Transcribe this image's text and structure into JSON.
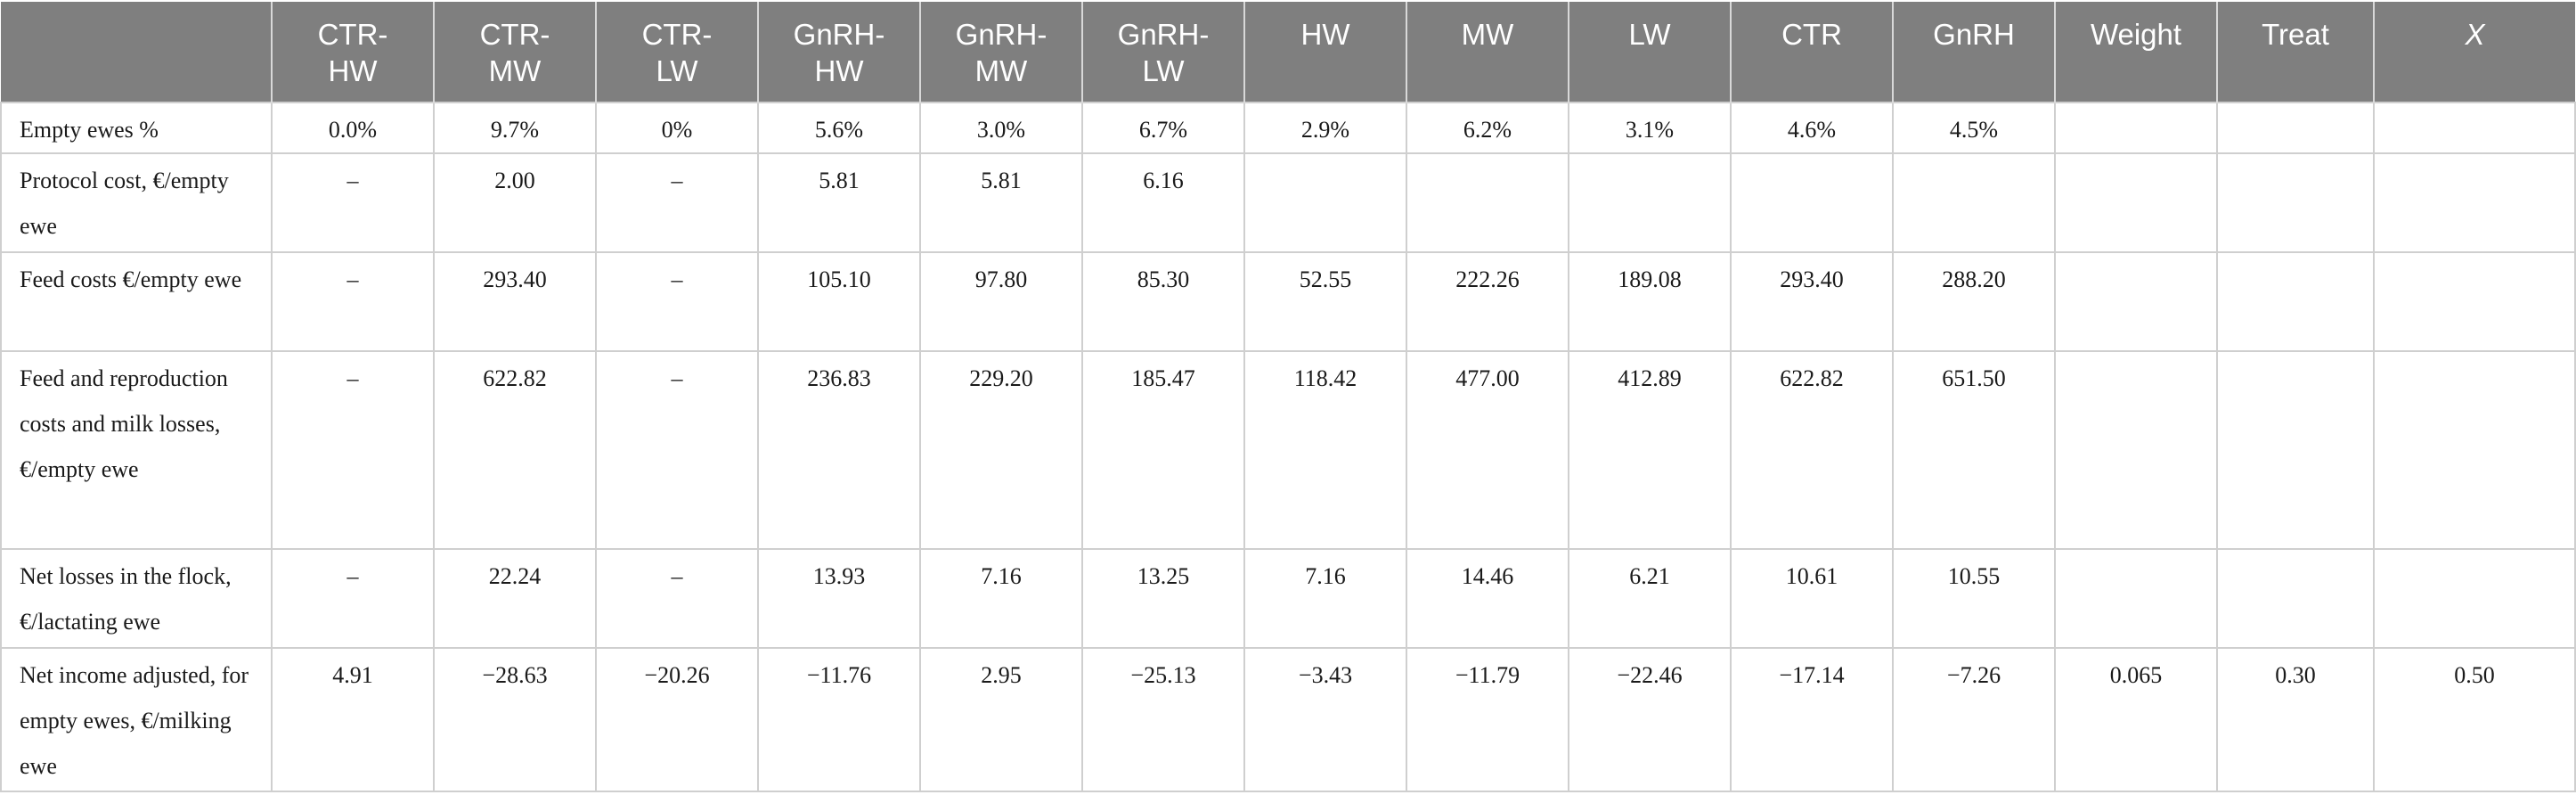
{
  "table": {
    "headers": [
      "",
      "CTR-HW",
      "CTR-MW",
      "CTR-LW",
      "GnRH-HW",
      "GnRH-MW",
      "GnRH-LW",
      "HW",
      "MW",
      "LW",
      "CTR",
      "GnRH",
      "Weight",
      "Treat",
      "X"
    ],
    "header_display": [
      "",
      "CTR-\nHW",
      "CTR-\nMW",
      "CTR-\nLW",
      "GnRH-\nHW",
      "GnRH-\nMW",
      "GnRH-\nLW",
      "HW",
      "MW",
      "LW",
      "CTR",
      "GnRH",
      "Weight",
      "Treat",
      "X"
    ],
    "rows": [
      {
        "label": "Empty ewes %",
        "cells": [
          "0.0%",
          "9.7%",
          "0%",
          "5.6%",
          "3.0%",
          "6.7%",
          "2.9%",
          "6.2%",
          "3.1%",
          "4.6%",
          "4.5%",
          "",
          "",
          ""
        ]
      },
      {
        "label": "Protocol cost, €/empty ewe",
        "cells": [
          "–",
          "2.00",
          "–",
          "5.81",
          "5.81",
          "6.16",
          "",
          "",
          "",
          "",
          "",
          "",
          "",
          ""
        ]
      },
      {
        "label": "Feed costs €/empty ewe",
        "cells": [
          "–",
          "293.40",
          "–",
          "105.10",
          "97.80",
          "85.30",
          "52.55",
          "222.26",
          "189.08",
          "293.40",
          "288.20",
          "",
          "",
          ""
        ]
      },
      {
        "label": "Feed and reproduction costs and milk losses, €/empty ewe",
        "cells": [
          "–",
          "622.82",
          "–",
          "236.83",
          "229.20",
          "185.47",
          "118.42",
          "477.00",
          "412.89",
          "622.82",
          "651.50",
          "",
          "",
          ""
        ]
      },
      {
        "label": "Net losses in the flock, €/lactating ewe",
        "cells": [
          "–",
          "22.24",
          "–",
          "13.93",
          "7.16",
          "13.25",
          "7.16",
          "14.46",
          "6.21",
          "10.61",
          "10.55",
          "",
          "",
          ""
        ]
      },
      {
        "label": "Net income adjusted, for empty ewes, €/milking ewe",
        "cells": [
          "4.91",
          "−28.63",
          "−20.26",
          "−11.76",
          "2.95",
          "−25.13",
          "−3.43",
          "−11.79",
          "−22.46",
          "−17.14",
          "−7.26",
          "0.065",
          "0.30",
          "0.50"
        ]
      }
    ]
  },
  "colors": {
    "header_background": "#7f7f7f",
    "header_text": "#ffffff",
    "grid_line": "#cfcfcf",
    "body_text": "#1a1a1a"
  }
}
